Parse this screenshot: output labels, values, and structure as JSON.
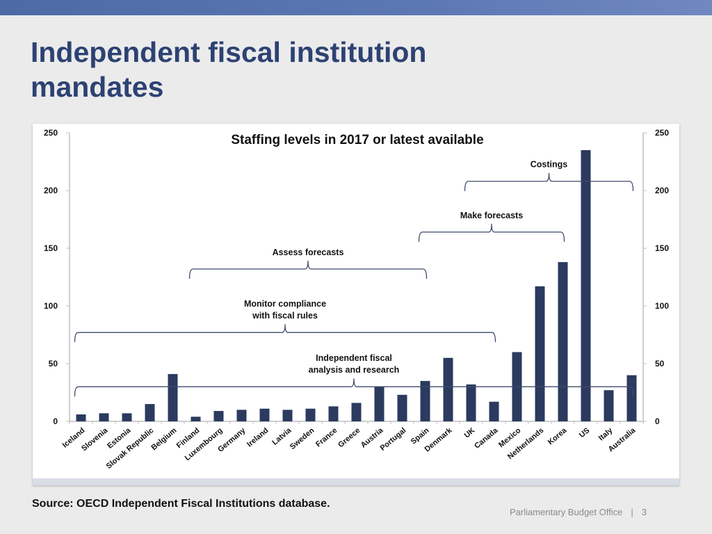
{
  "slide": {
    "title": "Independent fiscal institution mandates",
    "source": "Source: OECD Independent Fiscal Institutions database.",
    "footer_org": "Parliamentary Budget Office",
    "footer_sep": "|",
    "page_number": "3"
  },
  "chart_data": {
    "type": "bar",
    "title": "Staffing levels in 2017 or latest available",
    "xlabel": "",
    "ylabel": "",
    "ylim": [
      0,
      250
    ],
    "yticks": [
      0,
      50,
      100,
      150,
      200,
      250
    ],
    "ytick_labels": [
      "0",
      "50",
      "100",
      "150",
      "200",
      "250"
    ],
    "grid": false,
    "color": "#2b3a5e",
    "categories": [
      "Iceland",
      "Slovenia",
      "Estonia",
      "Slovak Republic",
      "Belgium",
      "Finland",
      "Luxembourg",
      "Germany",
      "Ireland",
      "Latvia",
      "Sweden",
      "France",
      "Greece",
      "Austria",
      "Portugal",
      "Spain",
      "Denmark",
      "UK",
      "Canada",
      "Mexico",
      "Netherlands",
      "Korea",
      "US",
      "Italy",
      "Australia"
    ],
    "values": [
      6,
      7,
      7,
      15,
      41,
      4,
      9,
      10,
      11,
      10,
      11,
      13,
      16,
      30,
      23,
      35,
      55,
      32,
      17,
      60,
      117,
      138,
      235,
      27,
      40
    ],
    "annotations": [
      {
        "lines": [
          "Independent fiscal",
          "analysis and research"
        ],
        "from": "Iceland",
        "to": "Australia",
        "level": 30
      },
      {
        "lines": [
          "Monitor compliance",
          "with fiscal rules"
        ],
        "from": "Iceland",
        "to": "Canada",
        "level": 77
      },
      {
        "lines": [
          "Assess forecasts"
        ],
        "from": "Finland",
        "to": "Spain",
        "level": 132
      },
      {
        "lines": [
          "Make forecasts"
        ],
        "from": "Spain",
        "to": "Korea",
        "level": 164
      },
      {
        "lines": [
          "Costings"
        ],
        "from": "UK",
        "to": "Australia",
        "level": 208
      }
    ]
  }
}
